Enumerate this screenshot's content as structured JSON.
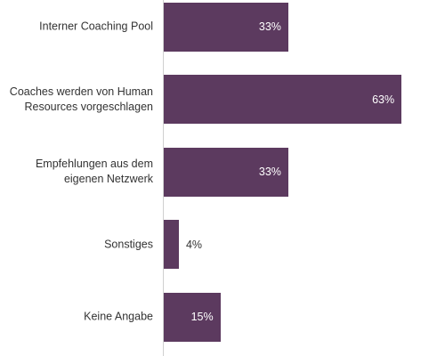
{
  "chart_data": {
    "type": "bar",
    "orientation": "horizontal",
    "categories": [
      "Interner Coaching Pool",
      "Coaches werden von Human\nResources vorgeschlagen",
      "Empfehlungen aus dem\neigenen Netzwerk",
      "Sonstiges",
      "Keine Angabe"
    ],
    "values": [
      33,
      63,
      33,
      4,
      15
    ],
    "value_labels": [
      "33%",
      "63%",
      "33%",
      "4%",
      "15%"
    ],
    "color": "#5c3a5f"
  }
}
